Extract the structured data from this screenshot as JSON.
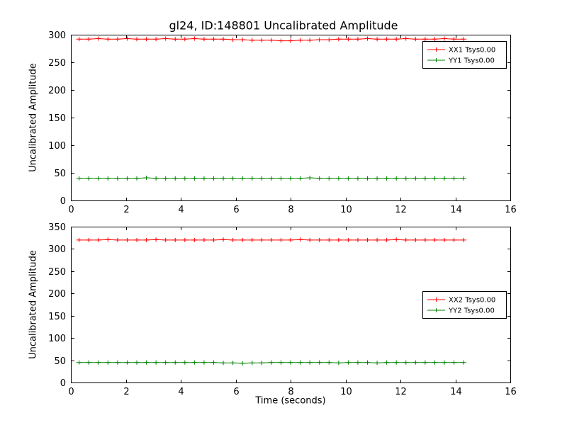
{
  "figure": {
    "title": "gl24, ID:148801 Uncalibrated Amplitude",
    "background": "#ffffff",
    "frame_color": "#000000"
  },
  "chart_data": [
    {
      "type": "line",
      "subplot": "top",
      "title": "",
      "xlabel": "",
      "ylabel": "Uncalibrated Amplitude",
      "xlim": [
        0,
        16
      ],
      "ylim": [
        0,
        300
      ],
      "xticks": [
        0,
        2,
        4,
        6,
        8,
        10,
        12,
        14,
        16
      ],
      "yticks": [
        0,
        50,
        100,
        150,
        200,
        250,
        300
      ],
      "grid": false,
      "legend_position": "upper right",
      "marker": "plus-errorbar",
      "x": [
        0.3,
        0.65,
        1.0,
        1.35,
        1.7,
        2.05,
        2.4,
        2.75,
        3.1,
        3.45,
        3.8,
        4.15,
        4.5,
        4.85,
        5.2,
        5.55,
        5.9,
        6.25,
        6.6,
        6.95,
        7.3,
        7.65,
        8.0,
        8.35,
        8.7,
        9.05,
        9.4,
        9.75,
        10.1,
        10.45,
        10.8,
        11.15,
        11.5,
        11.85,
        12.2,
        12.55,
        12.9,
        13.25,
        13.6,
        13.95,
        14.3
      ],
      "series": [
        {
          "name": "XX1 Tsys0.00",
          "color": "#ff0000",
          "values": [
            292,
            292,
            293,
            292,
            292,
            293,
            292,
            292,
            292,
            293,
            292,
            292,
            293,
            292,
            292,
            292,
            291,
            291,
            290,
            290,
            290,
            289,
            289,
            290,
            290,
            291,
            291,
            292,
            292,
            292,
            293,
            292,
            292,
            292,
            293,
            292,
            292,
            292,
            293,
            292,
            292
          ]
        },
        {
          "name": "YY1 Tsys0.00",
          "color": "#008000",
          "values": [
            40,
            40,
            40,
            40,
            40,
            40,
            40,
            41,
            40,
            40,
            40,
            40,
            40,
            40,
            40,
            40,
            40,
            40,
            40,
            40,
            40,
            40,
            40,
            40,
            41,
            40,
            40,
            40,
            40,
            40,
            40,
            40,
            40,
            40,
            40,
            40,
            40,
            40,
            40,
            40,
            40
          ]
        }
      ]
    },
    {
      "type": "line",
      "subplot": "bottom",
      "title": "",
      "xlabel": "Time (seconds)",
      "ylabel": "Uncalibrated Amplitude",
      "xlim": [
        0,
        16
      ],
      "ylim": [
        0,
        350
      ],
      "xticks": [
        0,
        2,
        4,
        6,
        8,
        10,
        12,
        14,
        16
      ],
      "yticks": [
        0,
        50,
        100,
        150,
        200,
        250,
        300,
        350
      ],
      "grid": false,
      "legend_position": "center right",
      "marker": "plus-errorbar",
      "x": [
        0.3,
        0.65,
        1.0,
        1.35,
        1.7,
        2.05,
        2.4,
        2.75,
        3.1,
        3.45,
        3.8,
        4.15,
        4.5,
        4.85,
        5.2,
        5.55,
        5.9,
        6.25,
        6.6,
        6.95,
        7.3,
        7.65,
        8.0,
        8.35,
        8.7,
        9.05,
        9.4,
        9.75,
        10.1,
        10.45,
        10.8,
        11.15,
        11.5,
        11.85,
        12.2,
        12.55,
        12.9,
        13.25,
        13.6,
        13.95,
        14.3
      ],
      "series": [
        {
          "name": "XX2 Tsys0.00",
          "color": "#ff0000",
          "values": [
            320,
            320,
            320,
            321,
            320,
            320,
            320,
            320,
            321,
            320,
            320,
            320,
            320,
            320,
            320,
            321,
            320,
            320,
            320,
            320,
            320,
            320,
            320,
            321,
            320,
            320,
            320,
            320,
            320,
            320,
            320,
            320,
            320,
            321,
            320,
            320,
            320,
            320,
            320,
            320,
            320
          ]
        },
        {
          "name": "YY2 Tsys0.00",
          "color": "#008000",
          "values": [
            45,
            45,
            45,
            45,
            45,
            45,
            45,
            45,
            45,
            45,
            45,
            45,
            45,
            45,
            45,
            44,
            44,
            43,
            44,
            44,
            45,
            45,
            45,
            45,
            45,
            45,
            45,
            44,
            45,
            45,
            45,
            44,
            45,
            45,
            45,
            45,
            45,
            45,
            45,
            45,
            45
          ]
        }
      ]
    }
  ]
}
